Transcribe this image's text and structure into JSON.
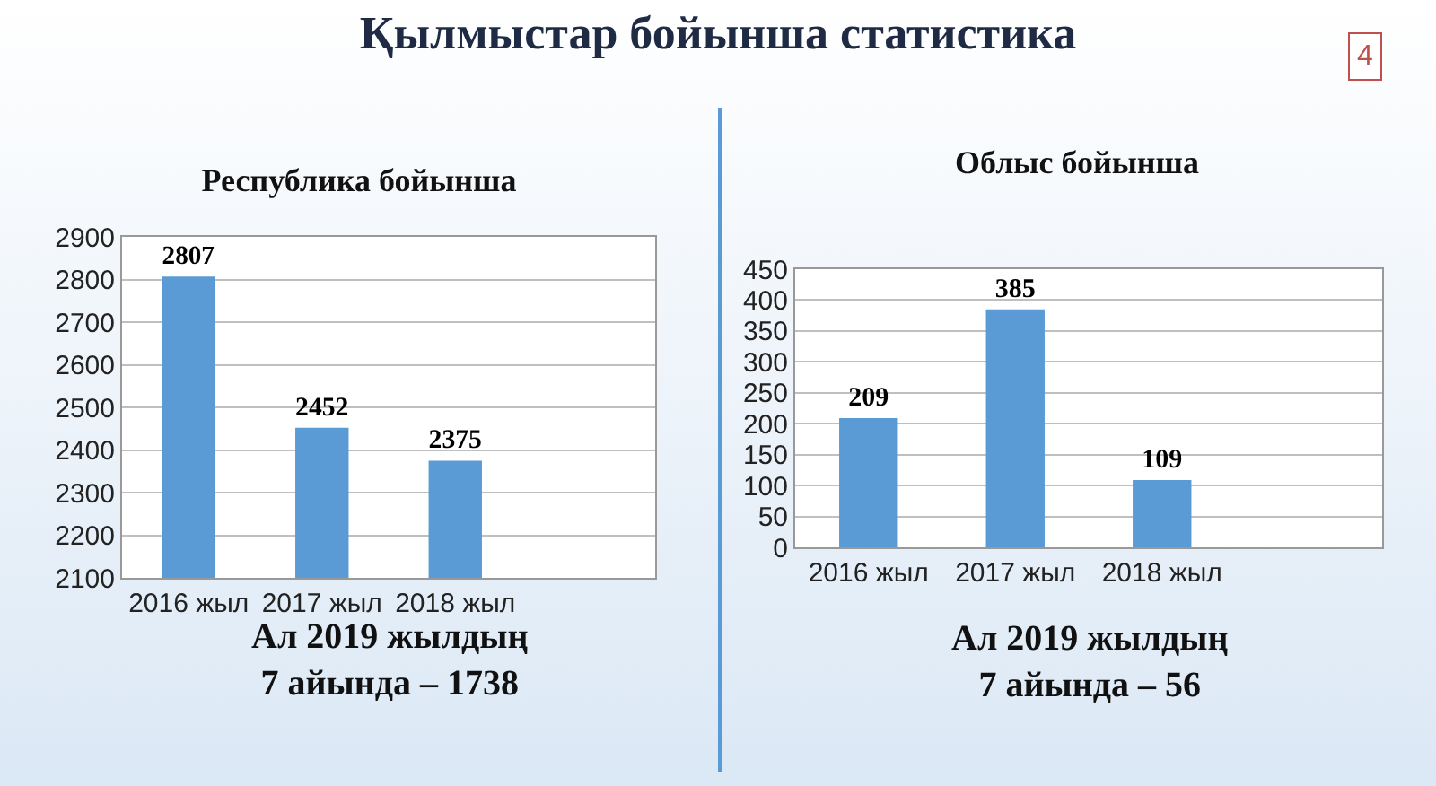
{
  "chart_data": [
    {
      "type": "bar",
      "title": "Қылмыстар бойынша статистика",
      "subtitle": "Республика бойынша",
      "categories": [
        "2016 жыл",
        "2017 жыл",
        "2018 жыл",
        null
      ],
      "values": [
        2807,
        2452,
        2375,
        null
      ],
      "color": "#5b9bd5",
      "ylim": [
        2100,
        2900
      ],
      "yticks": [
        2100,
        2200,
        2300,
        2400,
        2500,
        2600,
        2700,
        2800,
        2900
      ],
      "grid": "y",
      "data_labels": true,
      "annotations": [
        "Ал 2019 жылдың\n7 айында – 1738"
      ]
    },
    {
      "type": "bar",
      "title": "Облыс бойынша",
      "categories": [
        "2016 жыл",
        "2017 жыл",
        "2018 жыл",
        null
      ],
      "values": [
        209,
        385,
        109,
        null
      ],
      "color": "#5b9bd5",
      "ylim": [
        0,
        450
      ],
      "yticks": [
        0,
        50,
        100,
        150,
        200,
        250,
        300,
        350,
        400,
        450
      ],
      "grid": "y",
      "data_labels": true,
      "annotations": [
        "Ал 2019 жылдың\n7 айында – 56",
        "4"
      ]
    }
  ]
}
